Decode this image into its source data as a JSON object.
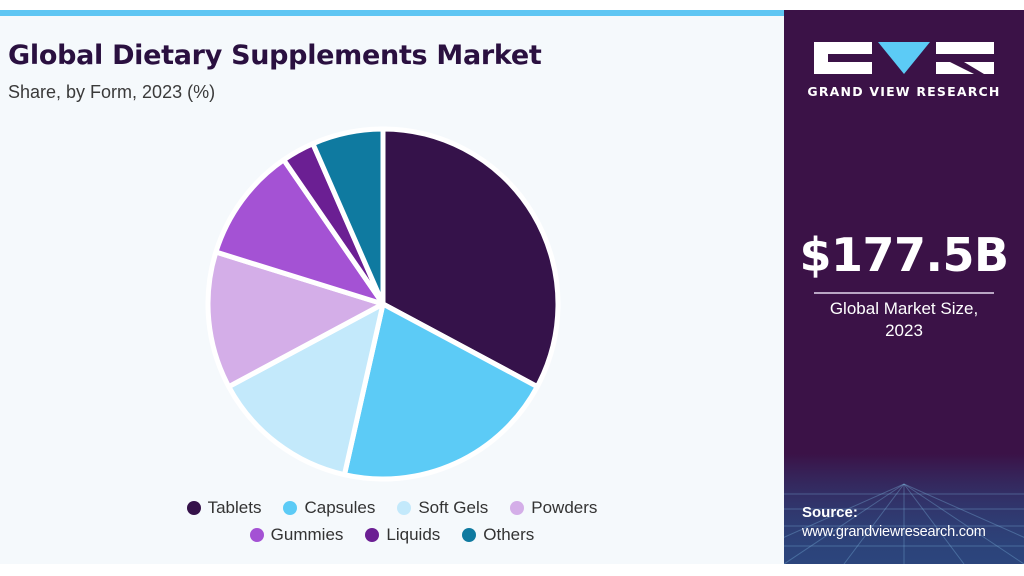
{
  "header": {
    "title": "Global Dietary Supplements Market",
    "subtitle": "Share, by Form, 2023 (%)"
  },
  "chart_data": {
    "type": "pie",
    "title": "Global Dietary Supplements Market",
    "subtitle": "Share, by Form, 2023 (%)",
    "legend_placement": "bottom",
    "slices": [
      {
        "label": "Tablets",
        "value": 32.5,
        "color": "#35124a"
      },
      {
        "label": "Capsules",
        "value": 20.5,
        "color": "#5ccbf6"
      },
      {
        "label": "Soft Gels",
        "value": 13.5,
        "color": "#c3e9fb"
      },
      {
        "label": "Powders",
        "value": 12.5,
        "color": "#d4aee8"
      },
      {
        "label": "Gummies",
        "value": 10.5,
        "color": "#a452d4"
      },
      {
        "label": "Liquids",
        "value": 3.0,
        "color": "#6b1f93"
      },
      {
        "label": "Others",
        "value": 6.5,
        "color": "#0f7aa0"
      }
    ],
    "legend_rows": [
      [
        "Tablets",
        "Capsules",
        "Soft Gels",
        "Powders"
      ],
      [
        "Gummies",
        "Liquids",
        "Others"
      ]
    ]
  },
  "sidebar": {
    "brand": "GRAND VIEW RESEARCH",
    "market_size": "$177.5B",
    "market_label_line1": "Global Market Size,",
    "market_label_line2": "2023",
    "source_label": "Source:",
    "source_url": "www.grandviewresearch.com"
  }
}
